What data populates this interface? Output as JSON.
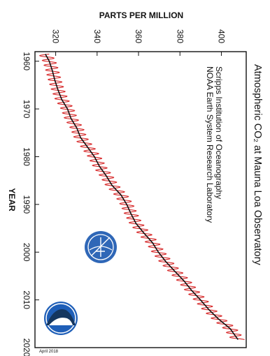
{
  "chart_data": {
    "type": "line",
    "title": "Atmospheric CO₂ at Mauna Loa Observatory",
    "subtitle": [
      "Scripps Institution of Oceanography",
      "NOAA Earth System Research Laboratory"
    ],
    "xlabel": "YEAR",
    "ylabel": "PARTS PER MILLION",
    "date_label": "April 2018",
    "xlim": [
      1958,
      2020
    ],
    "ylim": [
      310,
      412
    ],
    "xticks": [
      1960,
      1970,
      1980,
      1990,
      2000,
      2010,
      2020
    ],
    "yticks": [
      320,
      340,
      360,
      380,
      400
    ],
    "xtick_labels": [
      "1960",
      "1970",
      "1980",
      "1990",
      "2000",
      "2010",
      "2020"
    ],
    "ytick_labels": [
      "320",
      "340",
      "360",
      "380",
      "400"
    ],
    "orientation": "rotated 90 degrees clockwise (years run top to bottom, ppm right to left)",
    "grid": false,
    "series": [
      {
        "color": "#d62728",
        "style": "monthly mean, seasonal cycle",
        "x": [
          1958.5,
          1960,
          1962,
          1964,
          1966,
          1968,
          1970,
          1972,
          1974,
          1976,
          1978,
          1980,
          1982,
          1984,
          1986,
          1988,
          1990,
          1992,
          1994,
          1996,
          1998,
          2000,
          2002,
          2004,
          2006,
          2008,
          2010,
          2012,
          2014,
          2016,
          2018.3
        ],
        "y": [
          315.0,
          316.9,
          318.4,
          319.6,
          321.1,
          322.9,
          325.7,
          327.4,
          330.2,
          332.0,
          335.4,
          338.7,
          341.1,
          344.4,
          347.2,
          351.5,
          354.3,
          356.4,
          358.8,
          362.6,
          366.7,
          369.6,
          373.2,
          377.5,
          381.9,
          385.6,
          389.9,
          393.9,
          398.6,
          404.2,
          408.0
        ]
      },
      {
        "color": "#111111",
        "style": "seasonally corrected trend",
        "x": [
          1958.5,
          1960,
          1962,
          1964,
          1966,
          1968,
          1970,
          1972,
          1974,
          1976,
          1978,
          1980,
          1982,
          1984,
          1986,
          1988,
          1990,
          1992,
          1994,
          1996,
          1998,
          2000,
          2002,
          2004,
          2006,
          2008,
          2010,
          2012,
          2014,
          2016,
          2018.3
        ],
        "y": [
          315.0,
          316.9,
          318.4,
          319.6,
          321.1,
          322.9,
          325.7,
          327.4,
          330.2,
          332.0,
          335.4,
          338.7,
          341.1,
          344.4,
          347.2,
          351.5,
          354.3,
          356.4,
          358.8,
          362.6,
          366.7,
          369.6,
          373.2,
          377.5,
          381.9,
          385.6,
          389.9,
          393.9,
          398.6,
          404.2,
          408.0
        ]
      }
    ]
  },
  "logos": [
    "scripps-logo",
    "noaa-logo"
  ]
}
